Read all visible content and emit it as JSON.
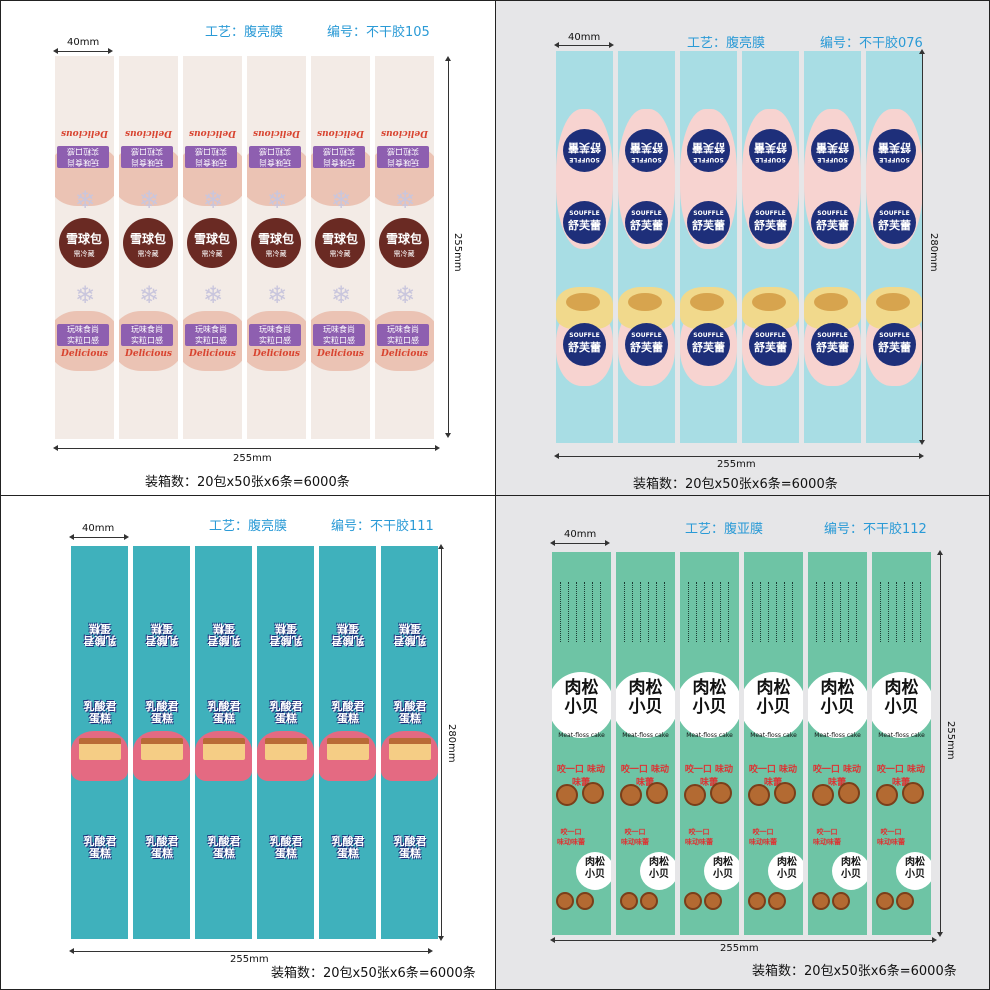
{
  "panels": [
    {
      "process": "工艺：腹亮膜",
      "code": "编号：不干胶105",
      "strip_width": "40mm",
      "total_width": "255mm",
      "height": "255mm",
      "packing": "装箱数：20包x50张x6条=6000条",
      "strip": {
        "name": "雪球包",
        "sub": "需冷藏",
        "tag_line1": "玩味食尚",
        "tag_line2": "实粒口感",
        "brand": "Delicious"
      }
    },
    {
      "process": "工艺：腹亮膜",
      "code": "编号：不干胶076",
      "strip_width": "40mm",
      "total_width": "255mm",
      "height": "280mm",
      "packing": "装箱数：20包x50张x6条=6000条",
      "strip": {
        "title_en": "SOUFFLE",
        "title_cn": "舒芙蕾"
      }
    },
    {
      "process": "工艺：腹亮膜",
      "code": "编号：不干胶111",
      "strip_width": "40mm",
      "total_width": "255mm",
      "height": "280mm",
      "packing": "装箱数：20包x50张x6条=6000条",
      "strip": {
        "logo_line1": "乳酸君",
        "logo_line2": "蛋糕"
      }
    },
    {
      "process": "工艺：腹亚膜",
      "code": "编号：不干胶112",
      "strip_width": "40mm",
      "total_width": "255mm",
      "height": "255mm",
      "packing": "装箱数：20包x50张x6条=6000条",
      "strip": {
        "title_line1": "肉松",
        "title_line2": "小贝",
        "en": "Meat-floss cake",
        "slogan": "咬一口 味动味蕾"
      }
    }
  ]
}
